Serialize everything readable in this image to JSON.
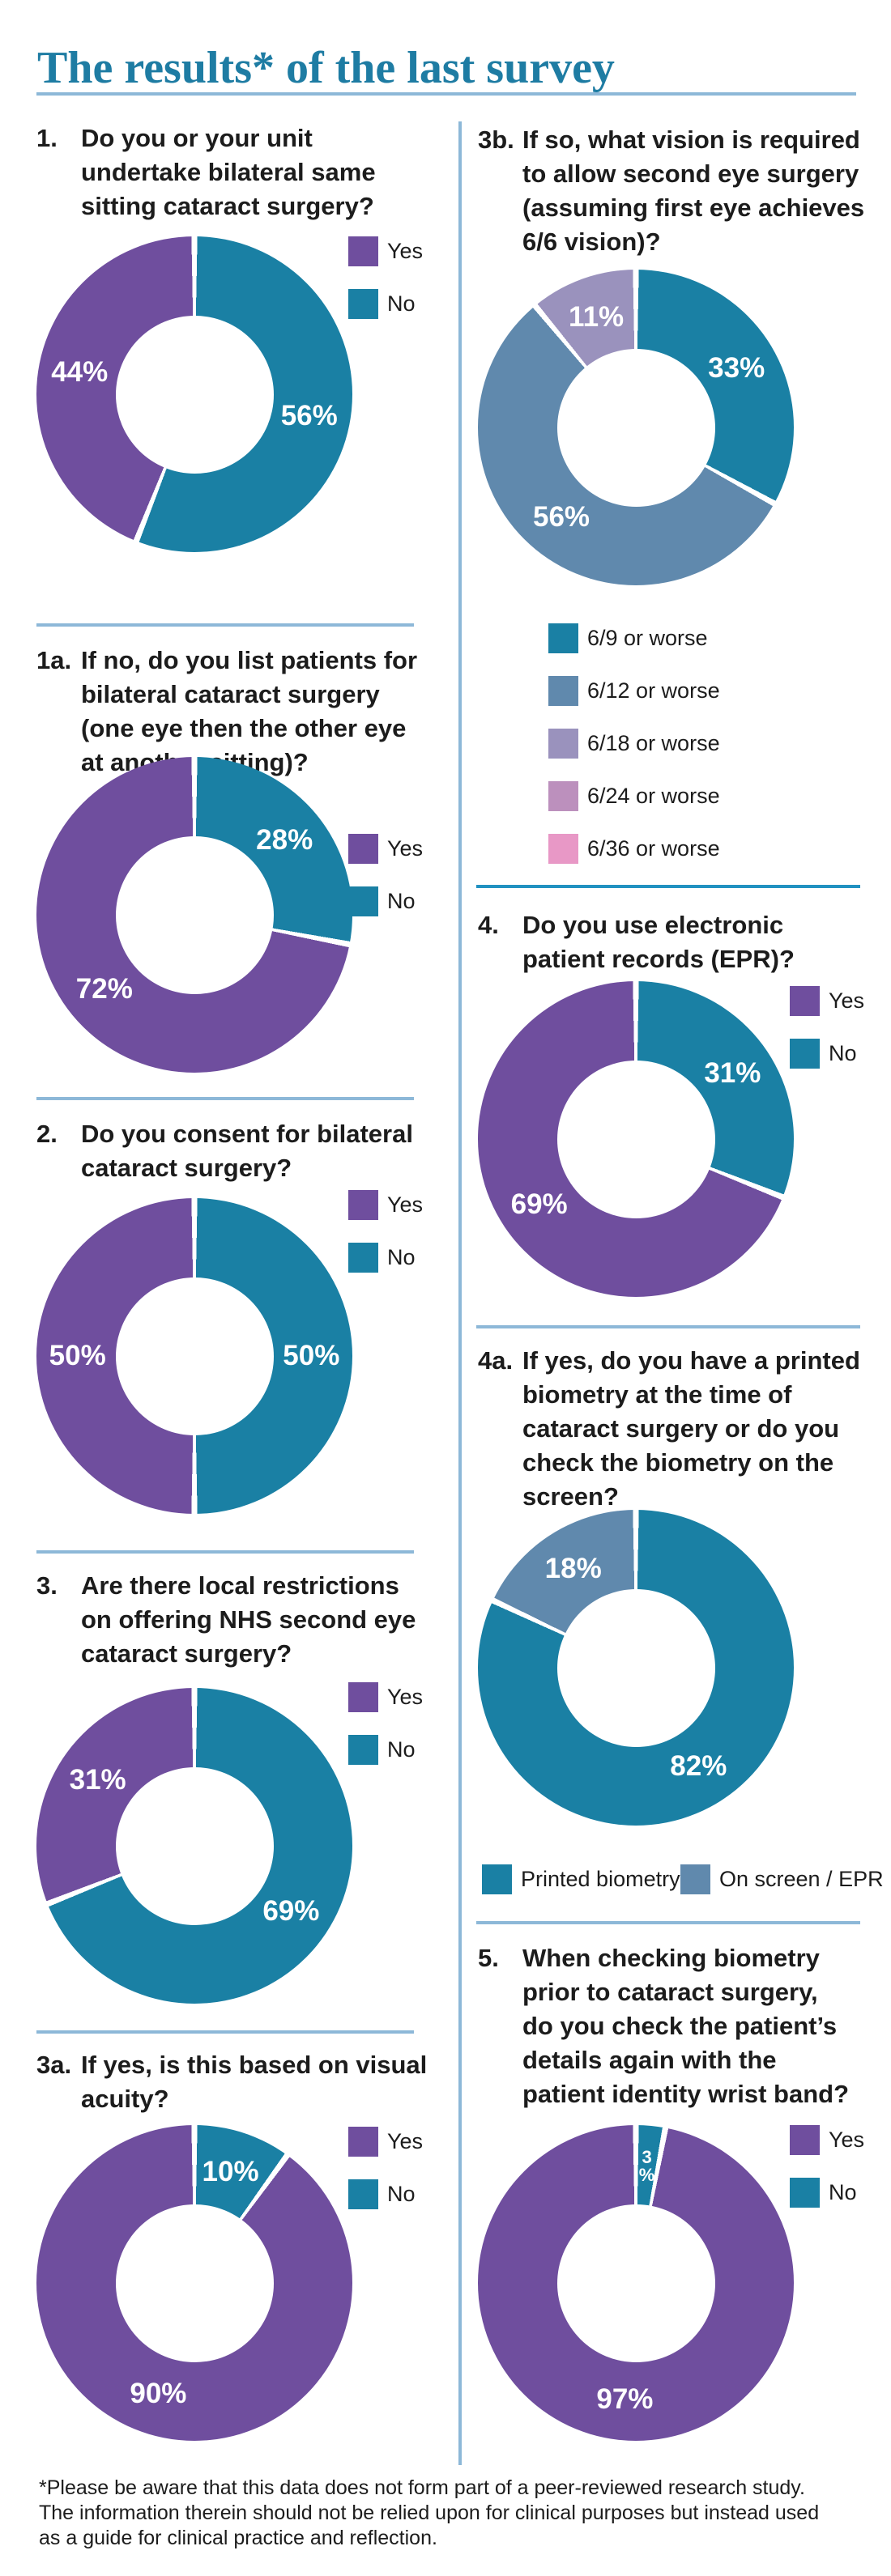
{
  "page": {
    "title": "The results* of the last survey",
    "footnote": "*Please be aware that this data does not form part of a peer-reviewed research study. The information therein should not be relied upon for clinical purposes but instead used as a guide for clinical practice and reflection."
  },
  "colors": {
    "purple": "#6f4e9e",
    "teal": "#1a80a4",
    "slate": "#6089ad",
    "lavender": "#9a92bd",
    "mauve": "#bc90bd",
    "pink": "#e898c6",
    "title_teal": "#1e7ca3",
    "rule_light": "#8db8d8",
    "rule_teal": "#2191c1",
    "text_dark": "#1c1c1c"
  },
  "chart_data": [
    {
      "id": "q1",
      "type": "donut",
      "number": "1.",
      "question": "Do you or your unit\nundertake bilateral same\nsitting cataract surgery?",
      "segments": [
        {
          "label": "No",
          "value": 56,
          "color": "teal"
        },
        {
          "label": "Yes",
          "value": 44,
          "color": "purple"
        }
      ],
      "legend": [
        {
          "label": "Yes",
          "color": "purple"
        },
        {
          "label": "No",
          "color": "teal"
        }
      ]
    },
    {
      "id": "q1a",
      "type": "donut",
      "number": "1a.",
      "question": "If no, do you list patients for\nbilateral cataract surgery\n(one eye then the other eye\nat another sitting)?",
      "segments": [
        {
          "label": "No",
          "value": 28,
          "color": "teal"
        },
        {
          "label": "Yes",
          "value": 72,
          "color": "purple"
        }
      ],
      "legend": [
        {
          "label": "Yes",
          "color": "purple"
        },
        {
          "label": "No",
          "color": "teal"
        }
      ]
    },
    {
      "id": "q2",
      "type": "donut",
      "number": "2.",
      "question": "Do you consent for bilateral\ncataract surgery?",
      "segments": [
        {
          "label": "No",
          "value": 50,
          "color": "teal"
        },
        {
          "label": "Yes",
          "value": 50,
          "color": "purple"
        }
      ],
      "legend": [
        {
          "label": "Yes",
          "color": "purple"
        },
        {
          "label": "No",
          "color": "teal"
        }
      ]
    },
    {
      "id": "q3",
      "type": "donut",
      "number": "3.",
      "question": "Are there local restrictions\non offering NHS second eye\ncataract surgery?",
      "segments": [
        {
          "label": "No",
          "value": 69,
          "color": "teal"
        },
        {
          "label": "Yes",
          "value": 31,
          "color": "purple"
        }
      ],
      "legend": [
        {
          "label": "Yes",
          "color": "purple"
        },
        {
          "label": "No",
          "color": "teal"
        }
      ]
    },
    {
      "id": "q3a",
      "type": "donut",
      "number": "3a.",
      "question": "If yes, is this based on visual\nacuity?",
      "segments": [
        {
          "label": "No",
          "value": 10,
          "color": "teal"
        },
        {
          "label": "Yes",
          "value": 90,
          "color": "purple"
        }
      ],
      "legend": [
        {
          "label": "Yes",
          "color": "purple"
        },
        {
          "label": "No",
          "color": "teal"
        }
      ]
    },
    {
      "id": "q3b",
      "type": "donut",
      "number": "3b.",
      "question": "If so, what vision is required\nto allow second eye surgery\n(assuming first eye achieves\n6/6 vision)?",
      "segments": [
        {
          "label": "6/9 or worse",
          "value": 33,
          "color": "teal"
        },
        {
          "label": "6/12 or worse",
          "value": 56,
          "color": "slate"
        },
        {
          "label": "6/18 or worse",
          "value": 11,
          "color": "lavender"
        }
      ],
      "legend": [
        {
          "label": "6/9 or worse",
          "color": "teal"
        },
        {
          "label": "6/12 or worse",
          "color": "slate"
        },
        {
          "label": "6/18 or worse",
          "color": "lavender"
        },
        {
          "label": "6/24 or worse",
          "color": "mauve"
        },
        {
          "label": "6/36 or worse",
          "color": "pink"
        }
      ]
    },
    {
      "id": "q4",
      "type": "donut",
      "number": "4.",
      "question": "Do you use electronic\npatient records (EPR)?",
      "segments": [
        {
          "label": "No",
          "value": 31,
          "color": "teal"
        },
        {
          "label": "Yes",
          "value": 69,
          "color": "purple"
        }
      ],
      "legend": [
        {
          "label": "Yes",
          "color": "purple"
        },
        {
          "label": "No",
          "color": "teal"
        }
      ]
    },
    {
      "id": "q4a",
      "type": "donut",
      "number": "4a.",
      "question": "If yes, do you have a printed\nbiometry at the time of\ncataract surgery or do you\ncheck the biometry on the\nscreen?",
      "segments": [
        {
          "label": "Printed biometry",
          "value": 82,
          "color": "teal"
        },
        {
          "label": "On screen / EPR",
          "value": 18,
          "color": "slate"
        }
      ],
      "legend": [
        {
          "label": "Printed biometry",
          "color": "teal"
        },
        {
          "label": "On screen / EPR",
          "color": "slate"
        }
      ]
    },
    {
      "id": "q5",
      "type": "donut",
      "number": "5.",
      "question": "When checking biometry\nprior to cataract surgery,\ndo you check the patient’s\ndetails again with the\npatient identity wrist band?",
      "segments": [
        {
          "label": "No",
          "value": 3,
          "color": "teal"
        },
        {
          "label": "Yes",
          "value": 97,
          "color": "purple"
        }
      ],
      "legend": [
        {
          "label": "Yes",
          "color": "purple"
        },
        {
          "label": "No",
          "color": "teal"
        }
      ]
    }
  ]
}
